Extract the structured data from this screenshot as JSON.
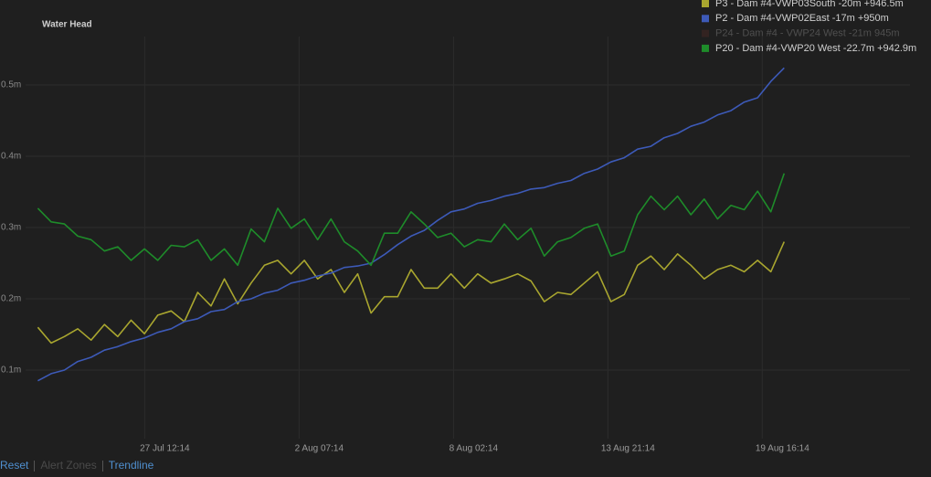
{
  "chart_data": {
    "type": "line",
    "title": "Water Head",
    "x": [
      "23 Jul 12:00",
      "24 Jul 00:00",
      "24 Jul 12:00",
      "25 Jul 00:00",
      "25 Jul 12:00",
      "26 Jul 00:00",
      "26 Jul 12:00",
      "27 Jul 00:00",
      "27 Jul 12:00",
      "28 Jul 00:00",
      "28 Jul 12:00",
      "29 Jul 00:00",
      "29 Jul 12:00",
      "30 Jul 00:00",
      "30 Jul 12:00",
      "31 Jul 00:00",
      "31 Jul 12:00",
      "1 Aug 00:00",
      "1 Aug 12:00",
      "2 Aug 00:00",
      "2 Aug 12:00",
      "3 Aug 00:00",
      "3 Aug 12:00",
      "4 Aug 00:00",
      "4 Aug 12:00",
      "5 Aug 00:00",
      "5 Aug 12:00",
      "6 Aug 00:00",
      "6 Aug 12:00",
      "7 Aug 00:00",
      "7 Aug 12:00",
      "8 Aug 00:00",
      "8 Aug 12:00",
      "9 Aug 00:00",
      "9 Aug 12:00",
      "10 Aug 00:00",
      "10 Aug 12:00",
      "11 Aug 00:00",
      "11 Aug 12:00",
      "12 Aug 00:00",
      "12 Aug 12:00",
      "13 Aug 00:00",
      "13 Aug 12:00",
      "14 Aug 00:00",
      "14 Aug 12:00",
      "15 Aug 00:00",
      "15 Aug 12:00",
      "16 Aug 00:00",
      "16 Aug 12:00",
      "17 Aug 00:00",
      "17 Aug 12:00",
      "18 Aug 00:00",
      "18 Aug 12:00",
      "19 Aug 00:00",
      "19 Aug 12:00",
      "20 Aug 00:00",
      "20 Aug 12:00"
    ],
    "series": [
      {
        "name": "P3 - Dam #4-VWP03South -20m +946.5m",
        "color": "#a9a62f",
        "visible": true,
        "values": [
          0.16,
          0.138,
          0.147,
          0.158,
          0.142,
          0.164,
          0.147,
          0.17,
          0.151,
          0.177,
          0.183,
          0.168,
          0.209,
          0.19,
          0.228,
          0.193,
          0.222,
          0.247,
          0.254,
          0.235,
          0.254,
          0.228,
          0.241,
          0.209,
          0.235,
          0.18,
          0.203,
          0.203,
          0.241,
          0.215,
          0.215,
          0.235,
          0.215,
          0.235,
          0.222,
          0.228,
          0.235,
          0.225,
          0.196,
          0.209,
          0.206,
          0.222,
          0.238,
          0.196,
          0.206,
          0.247,
          0.26,
          0.241,
          0.263,
          0.247,
          0.228,
          0.241,
          0.247,
          0.238,
          0.254,
          0.238,
          0.28
        ]
      },
      {
        "name": "P2 - Dam #4-VWP02East -17m +950m",
        "color": "#3d5ab8",
        "visible": true,
        "values": [
          0.085,
          0.095,
          0.1,
          0.112,
          0.118,
          0.128,
          0.133,
          0.14,
          0.145,
          0.153,
          0.158,
          0.168,
          0.172,
          0.182,
          0.185,
          0.196,
          0.2,
          0.208,
          0.212,
          0.222,
          0.226,
          0.232,
          0.236,
          0.244,
          0.246,
          0.25,
          0.262,
          0.276,
          0.288,
          0.296,
          0.31,
          0.322,
          0.326,
          0.334,
          0.338,
          0.344,
          0.348,
          0.354,
          0.356,
          0.362,
          0.366,
          0.376,
          0.382,
          0.392,
          0.398,
          0.41,
          0.414,
          0.426,
          0.432,
          0.442,
          0.448,
          0.458,
          0.464,
          0.476,
          0.482,
          0.505,
          0.524
        ]
      },
      {
        "name": "P24 - Dam #4 - VWP24 West -21m 945m",
        "color": "#5a2a25",
        "visible": false
      },
      {
        "name": "P20 - Dam #4-VWP20 West -22.7m +942.9m",
        "color": "#1e8c2a",
        "visible": true,
        "values": [
          0.327,
          0.308,
          0.305,
          0.288,
          0.283,
          0.267,
          0.273,
          0.254,
          0.27,
          0.254,
          0.275,
          0.273,
          0.283,
          0.254,
          0.27,
          0.247,
          0.298,
          0.28,
          0.327,
          0.299,
          0.312,
          0.283,
          0.312,
          0.28,
          0.267,
          0.247,
          0.292,
          0.292,
          0.322,
          0.305,
          0.286,
          0.292,
          0.273,
          0.283,
          0.28,
          0.305,
          0.283,
          0.299,
          0.26,
          0.28,
          0.286,
          0.299,
          0.305,
          0.26,
          0.267,
          0.318,
          0.344,
          0.325,
          0.344,
          0.318,
          0.34,
          0.312,
          0.331,
          0.325,
          0.351,
          0.322,
          0.376
        ]
      }
    ],
    "xlim": [
      "23 Jul 09:14",
      "25 Aug 05:14"
    ],
    "xticks": [
      "27 Jul 12:14",
      "2 Aug 07:14",
      "8 Aug 02:14",
      "13 Aug 21:14",
      "19 Aug 16:14"
    ],
    "ylim": [
      0.02,
      0.56
    ],
    "yticks": [
      {
        "value": 0.1,
        "label": "0.1m"
      },
      {
        "value": 0.2,
        "label": "0.2m"
      },
      {
        "value": 0.3,
        "label": "0.3m"
      },
      {
        "value": 0.4,
        "label": "0.4m"
      },
      {
        "value": 0.5,
        "label": "0.5m"
      }
    ],
    "grid": true,
    "legend": "top-right"
  },
  "controls": [
    {
      "label": "Reset",
      "enabled": true
    },
    {
      "label": "Alert Zones",
      "enabled": false
    },
    {
      "label": "Trendline",
      "enabled": true
    }
  ]
}
